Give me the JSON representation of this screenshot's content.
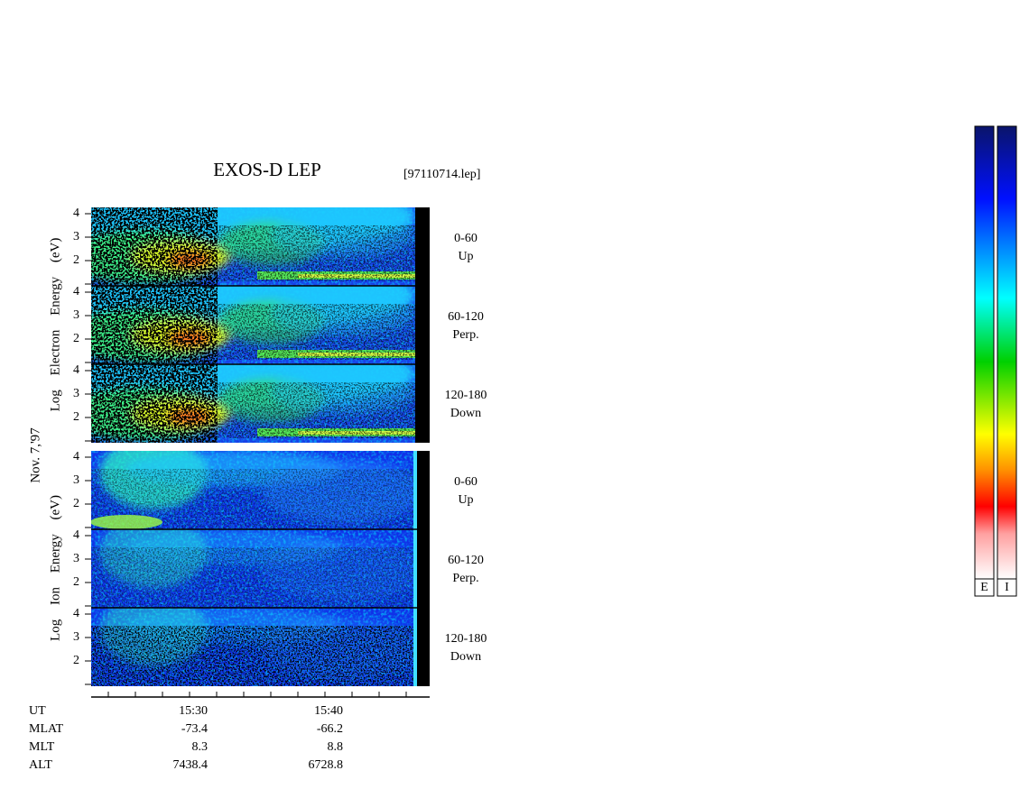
{
  "header": {
    "title": "EXOS-D LEP",
    "file": "[97110714.lep]"
  },
  "date": "Nov. 7,'97",
  "groups": [
    {
      "ylabel": "Log Electron Energy (eV)",
      "panels": [
        {
          "range": "0-60",
          "direction": "Up",
          "yticks": [
            2,
            3,
            4
          ]
        },
        {
          "range": "60-120",
          "direction": "Perp.",
          "yticks": [
            2,
            3,
            4
          ]
        },
        {
          "range": "120-180",
          "direction": "Down",
          "yticks": [
            2,
            3,
            4
          ]
        }
      ]
    },
    {
      "ylabel": "Log Ion Energy (eV)",
      "panels": [
        {
          "range": "0-60",
          "direction": "Up",
          "yticks": [
            2,
            3,
            4
          ]
        },
        {
          "range": "60-120",
          "direction": "Perp.",
          "yticks": [
            2,
            3,
            4
          ]
        },
        {
          "range": "120-180",
          "direction": "Down",
          "yticks": [
            2,
            3,
            4
          ]
        }
      ]
    }
  ],
  "orbit": [
    {
      "label": "UT",
      "values": [
        "15:30",
        "15:40"
      ]
    },
    {
      "label": "MLAT",
      "values": [
        "-73.4",
        "-66.2"
      ]
    },
    {
      "label": "MLT",
      "values": [
        "8.3",
        "8.8"
      ]
    },
    {
      "label": "ALT",
      "values": [
        "7438.4",
        "6728.8"
      ]
    }
  ],
  "colorbars": [
    "E",
    "I"
  ]
}
